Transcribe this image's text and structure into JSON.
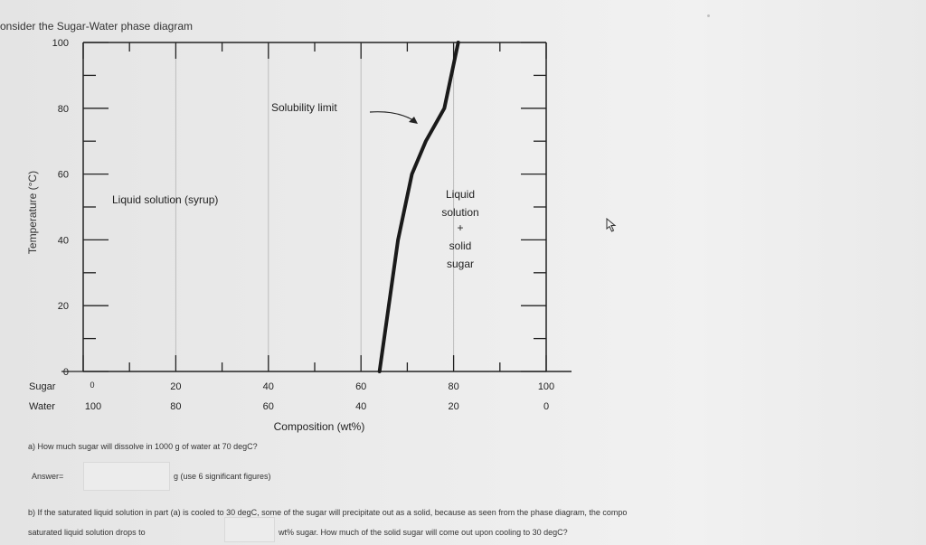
{
  "heading": "onsider the Sugar-Water phase diagram",
  "diagram": {
    "y_axis_label": "Temperature (°C)",
    "y_tick_labels": [
      "100",
      "80",
      "60",
      "40",
      "20",
      "0"
    ],
    "sugar_row_label": "Sugar",
    "water_row_label": "Water",
    "sugar_ticks": [
      "0",
      "20",
      "40",
      "60",
      "80",
      "100"
    ],
    "water_ticks": [
      "100",
      "80",
      "60",
      "40",
      "20",
      "0"
    ],
    "x_axis_label": "Composition (wt%)",
    "region_syrup": "Liquid solution (syrup)",
    "region_mixed": [
      "Liquid",
      "solution",
      "+",
      "solid",
      "sugar"
    ],
    "curve_label": "Solubility limit",
    "solubility_curve": {
      "sugar_wt_percent": [
        64,
        66,
        68,
        71,
        74,
        78,
        81
      ],
      "temperature_c": [
        0,
        20,
        40,
        60,
        70,
        80,
        100
      ]
    }
  },
  "question_a": "a) How much sugar will dissolve in 1000 g of water at 70 degC?",
  "answer_label": "Answer=",
  "answer_value": "",
  "answer_units": "g (use 6 significant figures)",
  "question_b_line1": "b) If the saturated liquid solution in part (a) is cooled to 30 degC, some of the sugar will precipitate out as a solid, because as seen from the phase diagram, the compo",
  "question_b_line2_pre": "saturated liquid solution drops to",
  "question_b_value": "",
  "question_b_line2_post": "wt% sugar. How much of the solid sugar will come out upon cooling to 30 degC?",
  "colors": {
    "curve": "#1a1a1a",
    "axis": "#222222"
  },
  "icons": [
    "mouse-pointer-icon"
  ]
}
